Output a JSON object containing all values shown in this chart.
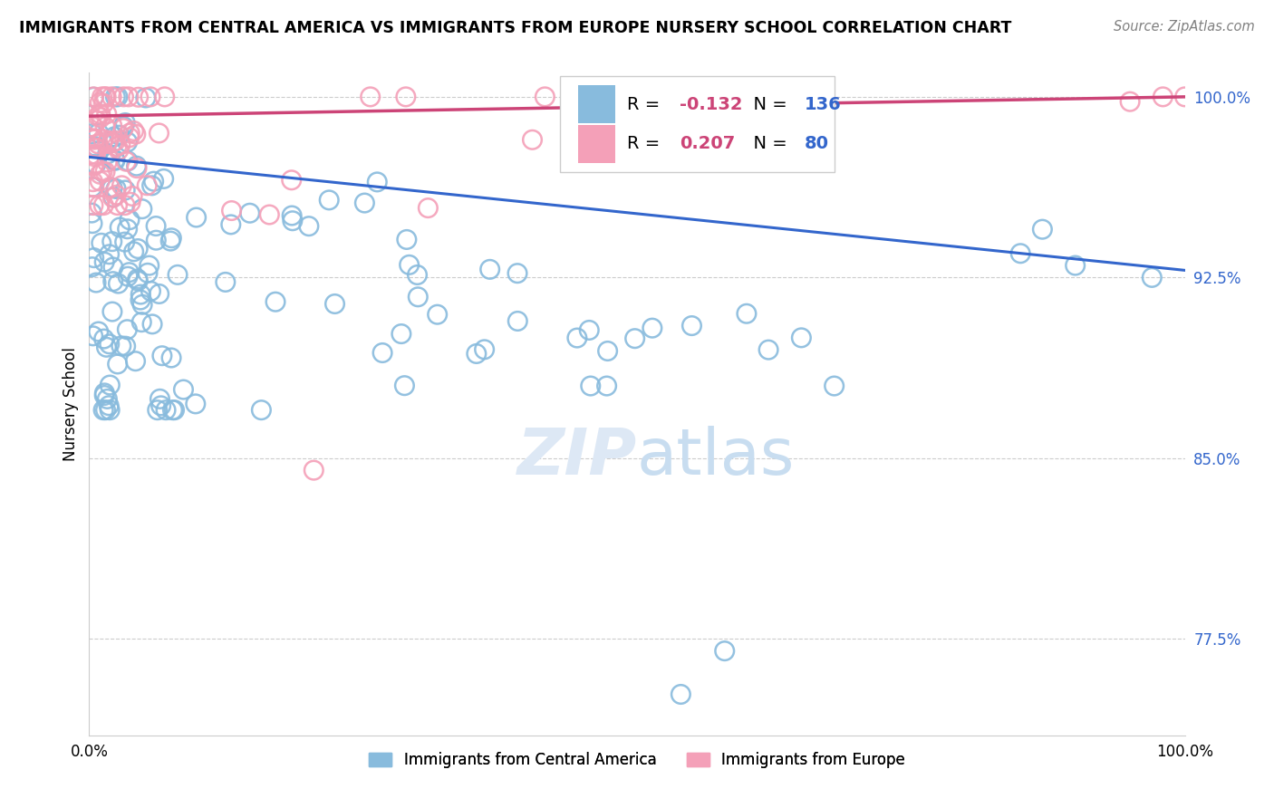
{
  "title": "IMMIGRANTS FROM CENTRAL AMERICA VS IMMIGRANTS FROM EUROPE NURSERY SCHOOL CORRELATION CHART",
  "source": "Source: ZipAtlas.com",
  "ylabel": "Nursery School",
  "legend_label_blue": "Immigrants from Central America",
  "legend_label_pink": "Immigrants from Europe",
  "R_blue": -0.132,
  "N_blue": 136,
  "R_pink": 0.207,
  "N_pink": 80,
  "color_blue": "#88bbdd",
  "color_pink": "#f4a0b8",
  "line_color_blue": "#3366cc",
  "line_color_pink": "#cc4477",
  "text_color_blue": "#3366cc",
  "text_color_pink": "#cc4477",
  "xlim": [
    0.0,
    1.0
  ],
  "ylim": [
    0.735,
    1.01
  ],
  "yticks": [
    0.775,
    0.85,
    0.925,
    1.0
  ],
  "ytick_labels": [
    "77.5%",
    "85.0%",
    "92.5%",
    "100.0%"
  ],
  "xticks": [
    0.0,
    1.0
  ],
  "xtick_labels": [
    "0.0%",
    "100.0%"
  ],
  "blue_trend_start": 0.975,
  "blue_trend_end": 0.928,
  "pink_trend_start": 0.992,
  "pink_trend_end": 1.0
}
